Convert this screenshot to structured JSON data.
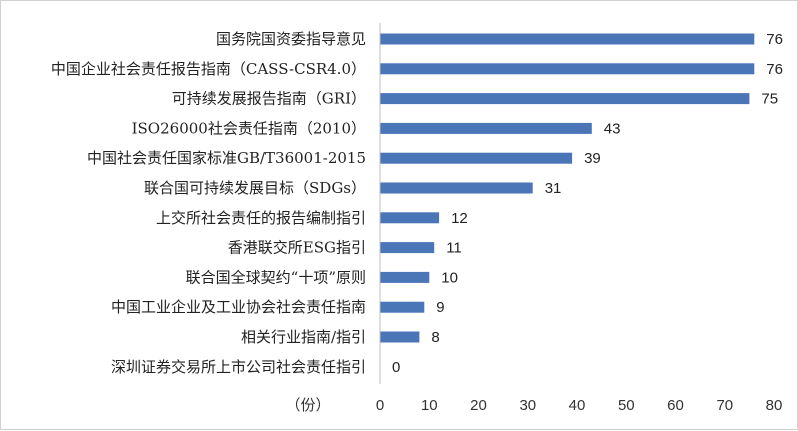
{
  "chart_data": {
    "type": "bar",
    "orientation": "horizontal",
    "categories": [
      "国务院国资委指导意见",
      "中国企业社会责任报告指南（CASS-CSR4.0）",
      "可持续发展报告指南（GRI）",
      "ISO26000社会责任指南（2010）",
      "中国社会责任国家标准GB/T36001-2015",
      "联合国可持续发展目标（SDGs）",
      "上交所社会责任的报告编制指引",
      "香港联交所ESG指引",
      "联合国全球契约“十项”原则",
      "中国工业企业及工业协会社会责任指南",
      "相关行业指南/指引",
      "深圳证券交易所上市公司社会责任指引"
    ],
    "values": [
      76,
      76,
      75,
      43,
      39,
      31,
      12,
      11,
      10,
      9,
      8,
      0
    ],
    "title": "",
    "xlabel": "（份）",
    "ylabel": "",
    "xlim": [
      0,
      80
    ],
    "xticks": [
      "0",
      "10",
      "20",
      "30",
      "40",
      "50",
      "60",
      "70",
      "80"
    ],
    "grid": false,
    "legend": "none",
    "bar_color": "#4a76b8",
    "axis_color": "#bfbfbf"
  }
}
